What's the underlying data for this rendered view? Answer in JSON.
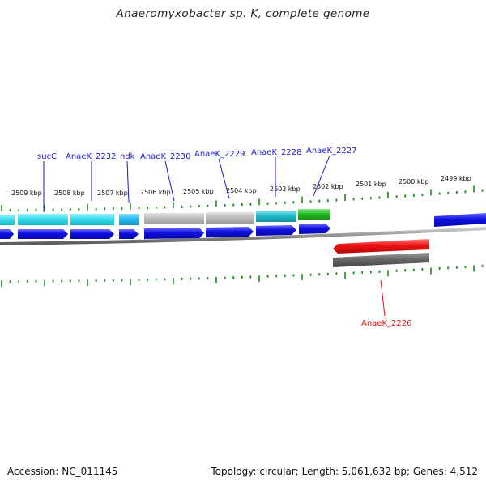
{
  "title": "Anaeromyxobacter sp. K, complete genome",
  "footer": {
    "accession": "Accession: NC_011145",
    "summary": "Topology: circular; Length: 5,061,632 bp; Genes: 4,512"
  },
  "scale_labels": [
    "2509 kbp",
    "2508 kbp",
    "2507 kbp",
    "2506 kbp",
    "2505 kbp",
    "2504 kbp",
    "2503 kbp",
    "2502 kbp",
    "2501 kbp",
    "2500 kbp",
    "2499 kbp"
  ],
  "gene_labels": [
    "sucC",
    "AnaeK_2232",
    "ndk",
    "AnaeK_2230",
    "AnaeK_2229",
    "AnaeK_2228",
    "AnaeK_2227",
    "AnaeK_2226"
  ],
  "colors": {
    "tick": "#1a8a1a",
    "backbone": "#8c8c8c",
    "cds": "#1010e0",
    "label_blue": "#1a1acc",
    "label_red": "#dd1111",
    "cyan": "#33ddee",
    "light_blue": "#22bbee",
    "gray": "#b4b4b4",
    "teal": "#22bbcc",
    "green": "#22bb22",
    "red": "#ee1111",
    "dark_gray": "#666666"
  }
}
